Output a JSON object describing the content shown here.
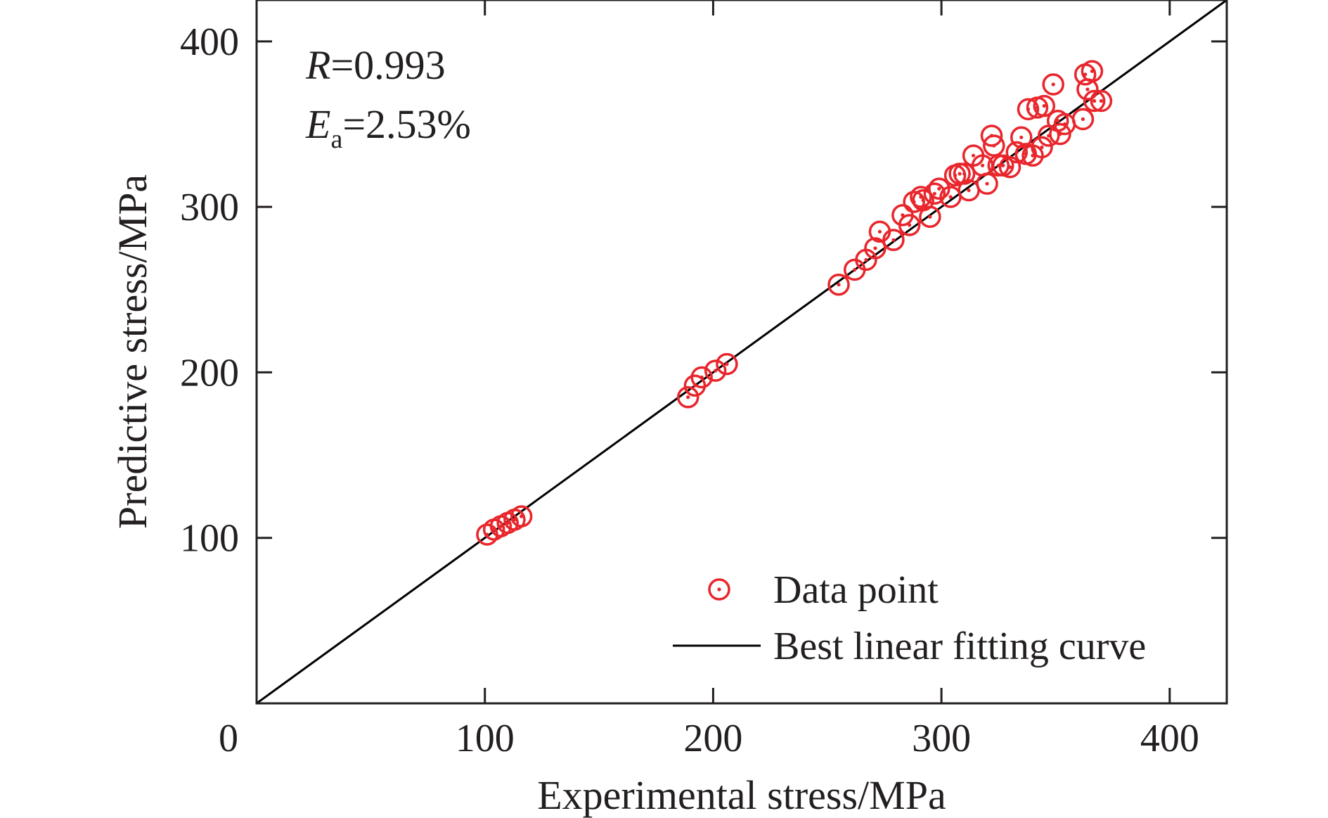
{
  "chart_data": {
    "type": "scatter",
    "xlabel": "Experimental stress/MPa",
    "ylabel": "Predictive stress/MPa",
    "xlim": [
      0,
      425
    ],
    "ylim": [
      0,
      425
    ],
    "x_ticks": [
      0,
      100,
      200,
      300,
      400
    ],
    "y_ticks": [
      100,
      200,
      300,
      400
    ],
    "x_tick_labels": [
      "0",
      "100",
      "200",
      "300",
      "400"
    ],
    "y_tick_labels": [
      "100",
      "200",
      "300",
      "400"
    ],
    "grid": false,
    "legend_position": "bottom-right",
    "annotations": {
      "r_symbol": "R",
      "r_value": "=0.993",
      "ea_symbol": "E",
      "ea_subscript": "a",
      "ea_value": "=2.53%"
    },
    "colors": {
      "points": "#e8262c",
      "line": "#000000",
      "axis": "#231f20"
    },
    "series": [
      {
        "name": "Data point",
        "marker": "circle-dot",
        "points": [
          [
            101,
            102
          ],
          [
            104,
            105
          ],
          [
            107,
            107
          ],
          [
            110,
            109
          ],
          [
            113,
            111
          ],
          [
            116,
            113
          ],
          [
            189,
            185
          ],
          [
            192,
            192
          ],
          [
            195,
            197
          ],
          [
            201,
            201
          ],
          [
            206,
            205
          ],
          [
            255,
            253
          ],
          [
            262,
            262
          ],
          [
            267,
            268
          ],
          [
            271,
            275
          ],
          [
            273,
            285
          ],
          [
            279,
            280
          ],
          [
            283,
            295
          ],
          [
            286,
            289
          ],
          [
            288,
            303
          ],
          [
            291,
            306
          ],
          [
            292,
            304
          ],
          [
            295,
            294
          ],
          [
            297,
            308
          ],
          [
            299,
            311
          ],
          [
            304,
            306
          ],
          [
            306,
            319
          ],
          [
            308,
            320
          ],
          [
            310,
            320
          ],
          [
            312,
            310
          ],
          [
            314,
            331
          ],
          [
            318,
            325
          ],
          [
            320,
            314
          ],
          [
            322,
            343
          ],
          [
            323,
            337
          ],
          [
            325,
            325
          ],
          [
            327,
            325
          ],
          [
            330,
            324
          ],
          [
            333,
            333
          ],
          [
            335,
            342
          ],
          [
            337,
            332
          ],
          [
            338,
            359
          ],
          [
            340,
            331
          ],
          [
            342,
            360
          ],
          [
            344,
            336
          ],
          [
            345,
            361
          ],
          [
            347,
            343
          ],
          [
            349,
            374
          ],
          [
            351,
            352
          ],
          [
            352,
            344
          ],
          [
            354,
            350
          ],
          [
            362,
            353
          ],
          [
            363,
            380
          ],
          [
            364,
            371
          ],
          [
            366,
            382
          ],
          [
            367,
            364
          ],
          [
            370,
            364
          ]
        ]
      },
      {
        "name": "Best linear fitting curve",
        "type": "line",
        "points": [
          [
            0,
            0
          ],
          [
            425,
            425
          ]
        ]
      }
    ]
  }
}
